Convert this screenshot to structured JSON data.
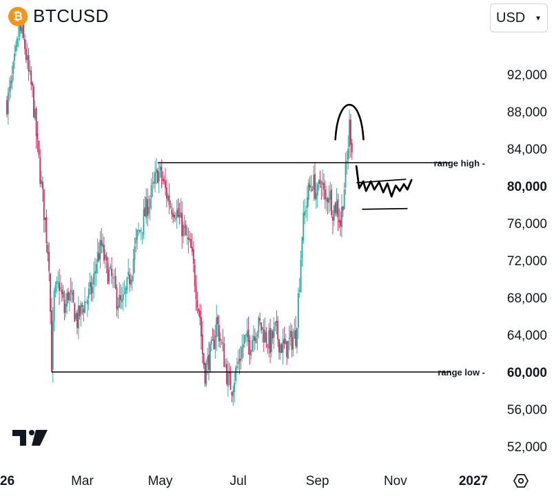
{
  "header": {
    "symbol": "BTCUSD",
    "logo_glyph": "₿",
    "logo_icon": "bitcoin-icon",
    "logo_color": "#F7931A"
  },
  "currency_select": {
    "value": "USD",
    "icon": "chevron-down-icon"
  },
  "branding": {
    "icon": "tradingview-logo"
  },
  "settings": {
    "icon": "settings-hexagon-icon"
  },
  "colors": {
    "up": "#26A69A",
    "down": "#D1285A",
    "line": "#000000",
    "text": "#131722"
  },
  "chart_data": {
    "type": "candlestick",
    "title": "",
    "ylim": [
      48000,
      100000
    ],
    "y_ticks": [
      52000,
      56000,
      60000,
      64000,
      68000,
      72000,
      76000,
      80000,
      84000,
      88000,
      92000
    ],
    "y_tick_labels": [
      "52,000",
      "56,000",
      "60,000",
      "64,000",
      "68,000",
      "72,000",
      "76,000",
      "80,000",
      "84,000",
      "88,000",
      "92,000"
    ],
    "y_bold_labels": [
      "60,000",
      "80,000"
    ],
    "x_tick_labels": [
      "26",
      "Mar",
      "May",
      "Jul",
      "Sep",
      "Nov",
      "2027"
    ],
    "x_tick_dates": [
      "2026-01-01",
      "2026-03-01",
      "2026-05-01",
      "2026-07-01",
      "2026-09-01",
      "2026-11-01",
      "2027-01-01"
    ],
    "xlim": [
      "2026-01-01",
      "2027-01-01"
    ],
    "price_path": [
      [
        "2026-01-01",
        89000
      ],
      [
        "2026-01-04",
        90500
      ],
      [
        "2026-01-08",
        94000
      ],
      [
        "2026-01-11",
        97000
      ],
      [
        "2026-01-15",
        95000
      ],
      [
        "2026-01-18",
        92000
      ],
      [
        "2026-01-21",
        90000
      ],
      [
        "2026-01-25",
        84000
      ],
      [
        "2026-01-28",
        80000
      ],
      [
        "2026-01-31",
        76000
      ],
      [
        "2026-02-03",
        72000
      ],
      [
        "2026-02-05",
        61000
      ],
      [
        "2026-02-07",
        68000
      ],
      [
        "2026-02-11",
        69500
      ],
      [
        "2026-02-15",
        66500
      ],
      [
        "2026-02-18",
        68500
      ],
      [
        "2026-02-22",
        67000
      ],
      [
        "2026-02-25",
        65500
      ],
      [
        "2026-03-01",
        67000
      ],
      [
        "2026-03-05",
        68000
      ],
      [
        "2026-03-09",
        69000
      ],
      [
        "2026-03-12",
        72000
      ],
      [
        "2026-03-16",
        73500
      ],
      [
        "2026-03-20",
        71000
      ],
      [
        "2026-03-24",
        70000
      ],
      [
        "2026-03-28",
        68000
      ],
      [
        "2026-04-01",
        67000
      ],
      [
        "2026-04-05",
        69000
      ],
      [
        "2026-04-09",
        71500
      ],
      [
        "2026-04-13",
        74500
      ],
      [
        "2026-04-17",
        76000
      ],
      [
        "2026-04-21",
        78000
      ],
      [
        "2026-04-25",
        79500
      ],
      [
        "2026-04-29",
        81500
      ],
      [
        "2026-05-02",
        81000
      ],
      [
        "2026-05-05",
        79500
      ],
      [
        "2026-05-09",
        78000
      ],
      [
        "2026-05-13",
        77500
      ],
      [
        "2026-05-17",
        76000
      ],
      [
        "2026-05-21",
        74500
      ],
      [
        "2026-05-25",
        73000
      ],
      [
        "2026-05-29",
        69000
      ],
      [
        "2026-06-01",
        66000
      ],
      [
        "2026-06-03",
        62000
      ],
      [
        "2026-06-05",
        60000
      ],
      [
        "2026-06-08",
        61500
      ],
      [
        "2026-06-11",
        62500
      ],
      [
        "2026-06-14",
        65500
      ],
      [
        "2026-06-17",
        63500
      ],
      [
        "2026-06-20",
        61500
      ],
      [
        "2026-06-23",
        59000
      ],
      [
        "2026-06-26",
        58500
      ],
      [
        "2026-06-29",
        60000
      ],
      [
        "2026-07-02",
        61500
      ],
      [
        "2026-07-06",
        63500
      ],
      [
        "2026-07-10",
        63000
      ],
      [
        "2026-07-14",
        64500
      ],
      [
        "2026-07-18",
        65000
      ],
      [
        "2026-07-22",
        64000
      ],
      [
        "2026-07-26",
        63000
      ],
      [
        "2026-07-30",
        64500
      ],
      [
        "2026-08-03",
        63000
      ],
      [
        "2026-08-07",
        62500
      ],
      [
        "2026-08-12",
        63500
      ],
      [
        "2026-08-15",
        64000
      ],
      [
        "2026-08-18",
        70000
      ],
      [
        "2026-08-20",
        75000
      ],
      [
        "2026-08-24",
        79000
      ],
      [
        "2026-08-28",
        80500
      ],
      [
        "2026-09-01",
        79000
      ],
      [
        "2026-09-04",
        81000
      ],
      [
        "2026-09-07",
        78000
      ],
      [
        "2026-09-10",
        79500
      ],
      [
        "2026-09-13",
        77500
      ],
      [
        "2026-09-16",
        78000
      ],
      [
        "2026-09-19",
        76000
      ],
      [
        "2026-09-22",
        80000
      ],
      [
        "2026-09-24",
        82500
      ],
      [
        "2026-09-26",
        86500
      ],
      [
        "2026-09-28",
        84500
      ]
    ],
    "annotations": [
      {
        "type": "hline",
        "y": 82500,
        "x_start": "2026-04-29",
        "x_end": "2026-12-14",
        "label": "range high -"
      },
      {
        "type": "hline",
        "y": 60000,
        "x_start": "2026-02-05",
        "x_end": "2026-12-14",
        "label": "range low -"
      },
      {
        "type": "arc",
        "x_start": "2026-09-15",
        "x_end": "2026-10-07",
        "y_base": 85000,
        "y_peak": 88500
      },
      {
        "type": "channel-drawing",
        "x_start": "2026-10-02",
        "x_end": "2026-11-09",
        "y_top": 80500,
        "y_bottom": 77500
      }
    ]
  }
}
